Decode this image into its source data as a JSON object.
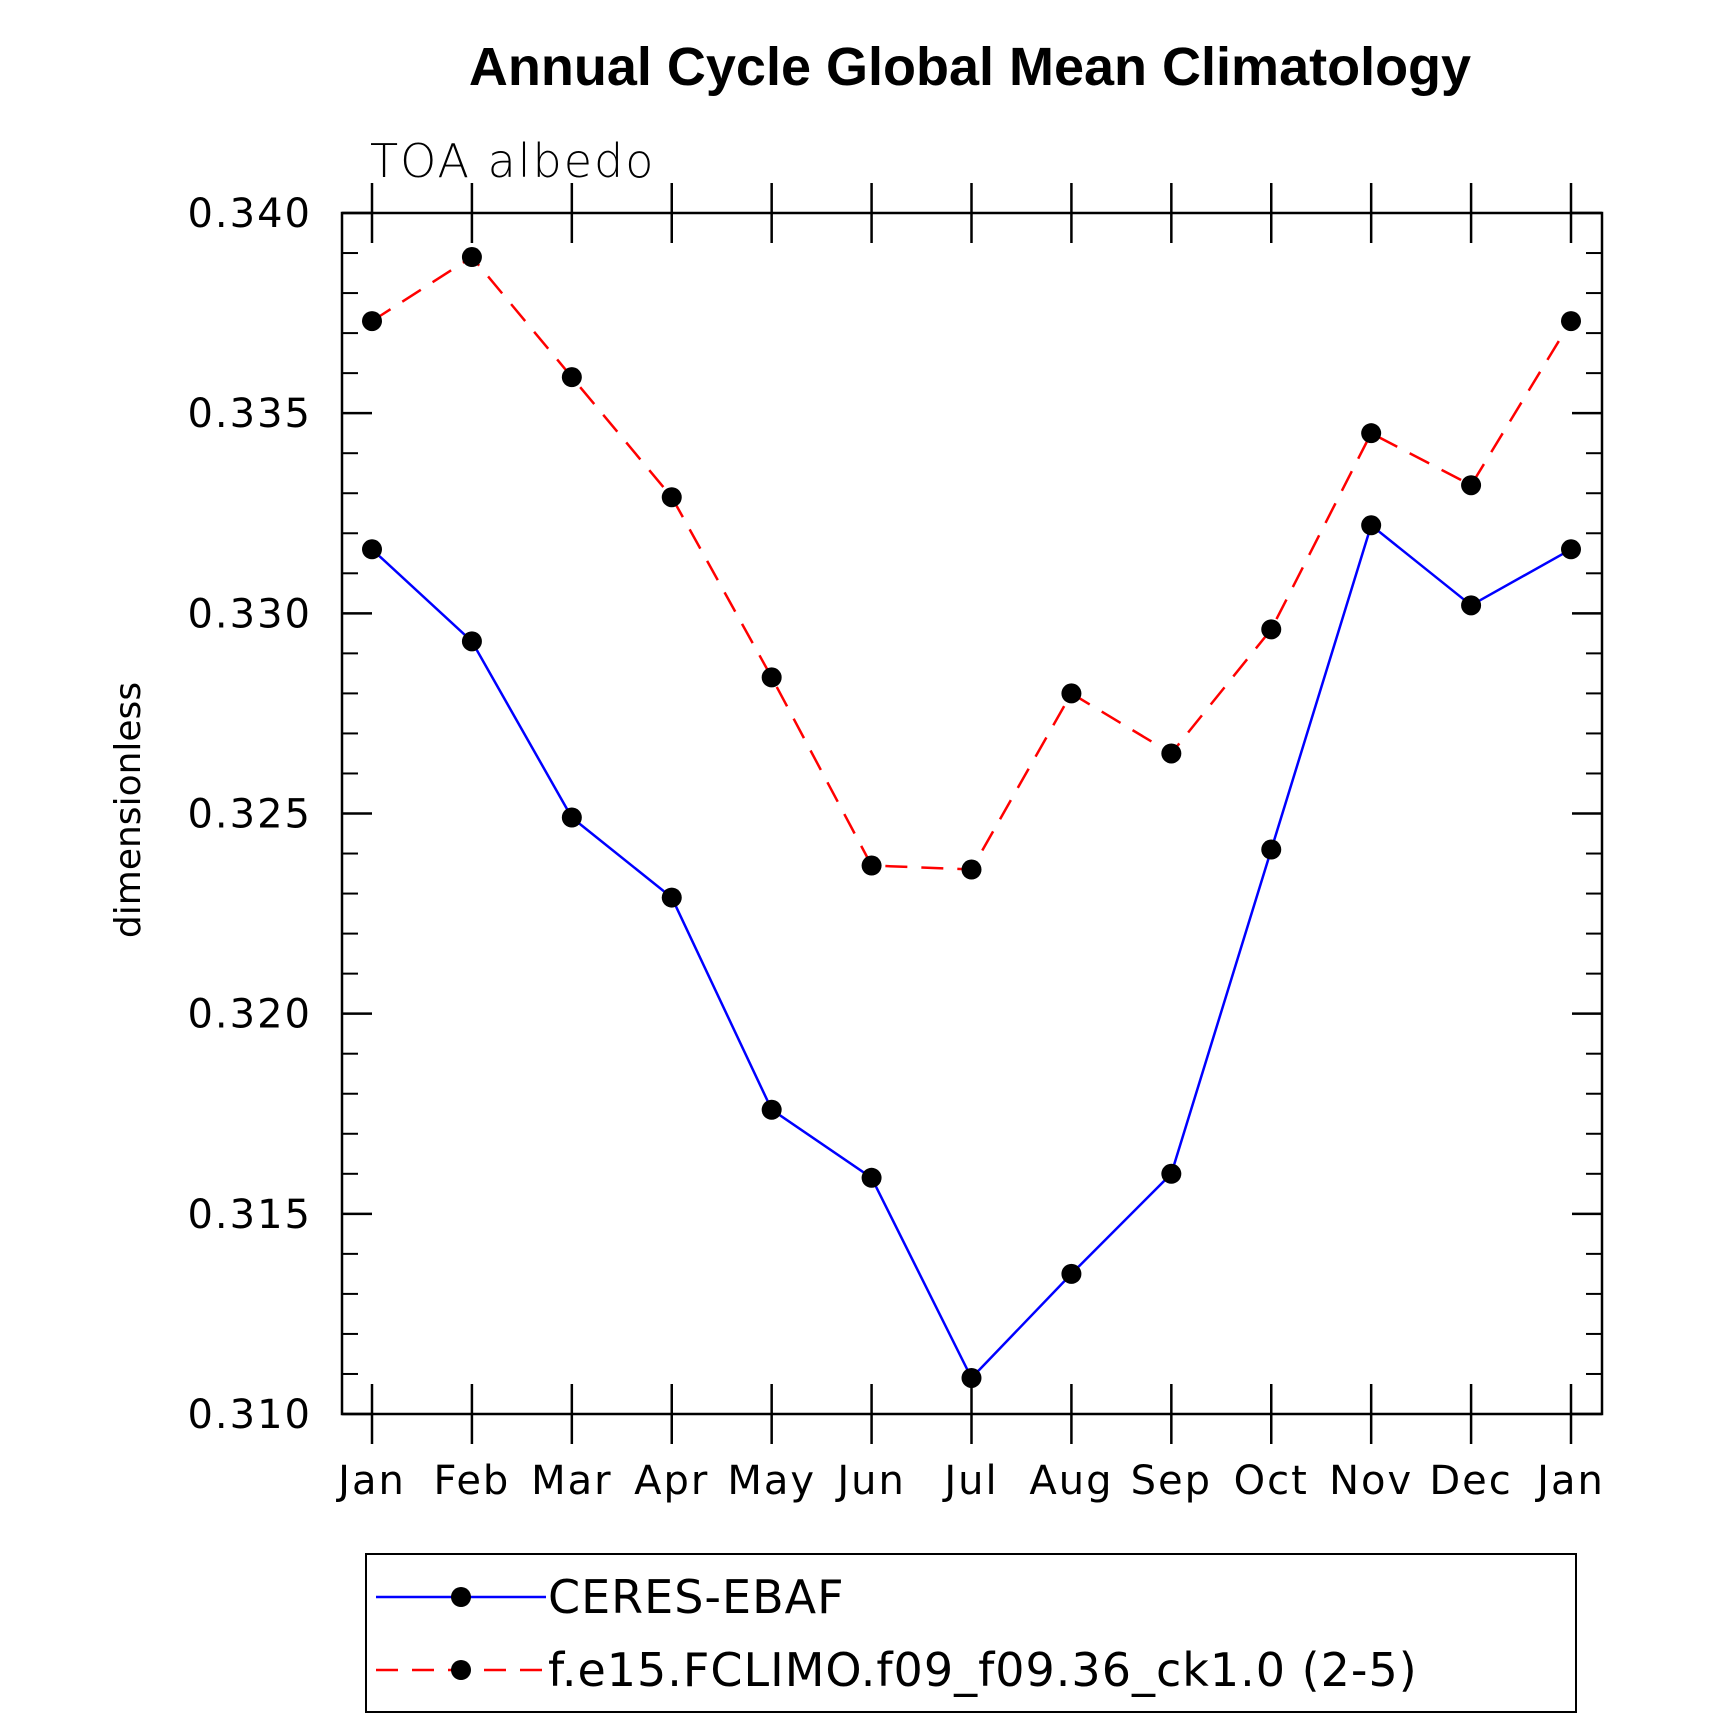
{
  "chart_data": {
    "type": "line",
    "title": "Annual Cycle Global Mean Climatology",
    "subtitle": "TOA albedo",
    "xlabel": "",
    "ylabel": "dimensionless",
    "categories": [
      "Jan",
      "Feb",
      "Mar",
      "Apr",
      "May",
      "Jun",
      "Jul",
      "Aug",
      "Sep",
      "Oct",
      "Nov",
      "Dec",
      "Jan"
    ],
    "ylim": [
      0.31,
      0.34
    ],
    "yticks": [
      "0.310",
      "0.315",
      "0.320",
      "0.325",
      "0.330",
      "0.335",
      "0.340"
    ],
    "ytick_values": [
      0.31,
      0.315,
      0.32,
      0.325,
      0.33,
      0.335,
      0.34
    ],
    "series": [
      {
        "name": "CERES-EBAF",
        "color": "#0000ff",
        "dash": "solid",
        "marker": "dot",
        "values": [
          0.3316,
          0.3293,
          0.3249,
          0.3229,
          0.3176,
          0.3159,
          0.3109,
          0.3135,
          0.316,
          0.3241,
          0.3322,
          0.3302,
          0.3316
        ]
      },
      {
        "name": "f.e15.FCLIMO.f09_f09.36_ck1.0 (2-5)",
        "color": "#ff0000",
        "dash": "dashed",
        "marker": "dot",
        "values": [
          0.3373,
          0.3389,
          0.3359,
          0.3329,
          0.3284,
          0.3237,
          0.3236,
          0.328,
          0.3265,
          0.3296,
          0.3345,
          0.3332,
          0.3373
        ]
      }
    ],
    "legend_position": "bottom"
  }
}
